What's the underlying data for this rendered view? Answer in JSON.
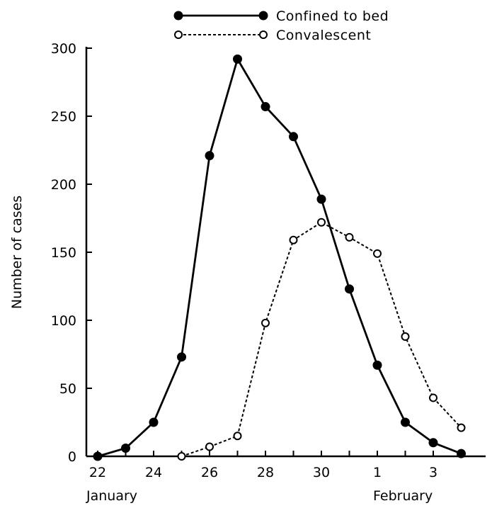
{
  "chart_data": {
    "type": "line",
    "ylabel": "Number of cases",
    "ylim": [
      0,
      300
    ],
    "y_ticks": [
      0,
      50,
      100,
      150,
      200,
      250,
      300
    ],
    "x_ticks": [
      {
        "day": 0,
        "label": "22"
      },
      {
        "day": 2,
        "label": "24"
      },
      {
        "day": 4,
        "label": "26"
      },
      {
        "day": 6,
        "label": "28"
      },
      {
        "day": 8,
        "label": "30"
      },
      {
        "day": 10,
        "label": "1"
      },
      {
        "day": 12,
        "label": "3"
      }
    ],
    "month_labels": [
      {
        "day": 0,
        "label": "January"
      },
      {
        "day": 10,
        "label": "February"
      }
    ],
    "series": [
      {
        "name": "Confined to bed",
        "marker": "filled-circle",
        "line": "solid",
        "color": "#000000",
        "points": [
          {
            "x": 0,
            "y": 0
          },
          {
            "x": 1,
            "y": 6
          },
          {
            "x": 2,
            "y": 25
          },
          {
            "x": 3,
            "y": 73
          },
          {
            "x": 4,
            "y": 221
          },
          {
            "x": 5,
            "y": 292
          },
          {
            "x": 6,
            "y": 257
          },
          {
            "x": 7,
            "y": 235
          },
          {
            "x": 8,
            "y": 189
          },
          {
            "x": 9,
            "y": 123
          },
          {
            "x": 10,
            "y": 67
          },
          {
            "x": 11,
            "y": 25
          },
          {
            "x": 12,
            "y": 10
          },
          {
            "x": 13,
            "y": 2
          }
        ]
      },
      {
        "name": "Convalescent",
        "marker": "open-circle",
        "line": "dashed",
        "color": "#000000",
        "points": [
          {
            "x": 3,
            "y": 0
          },
          {
            "x": 4,
            "y": 7
          },
          {
            "x": 5,
            "y": 15
          },
          {
            "x": 6,
            "y": 98
          },
          {
            "x": 7,
            "y": 159
          },
          {
            "x": 8,
            "y": 172
          },
          {
            "x": 9,
            "y": 161
          },
          {
            "x": 10,
            "y": 149
          },
          {
            "x": 11,
            "y": 88
          },
          {
            "x": 12,
            "y": 43
          },
          {
            "x": 13,
            "y": 21
          }
        ]
      }
    ],
    "legend_position": "top-center"
  }
}
